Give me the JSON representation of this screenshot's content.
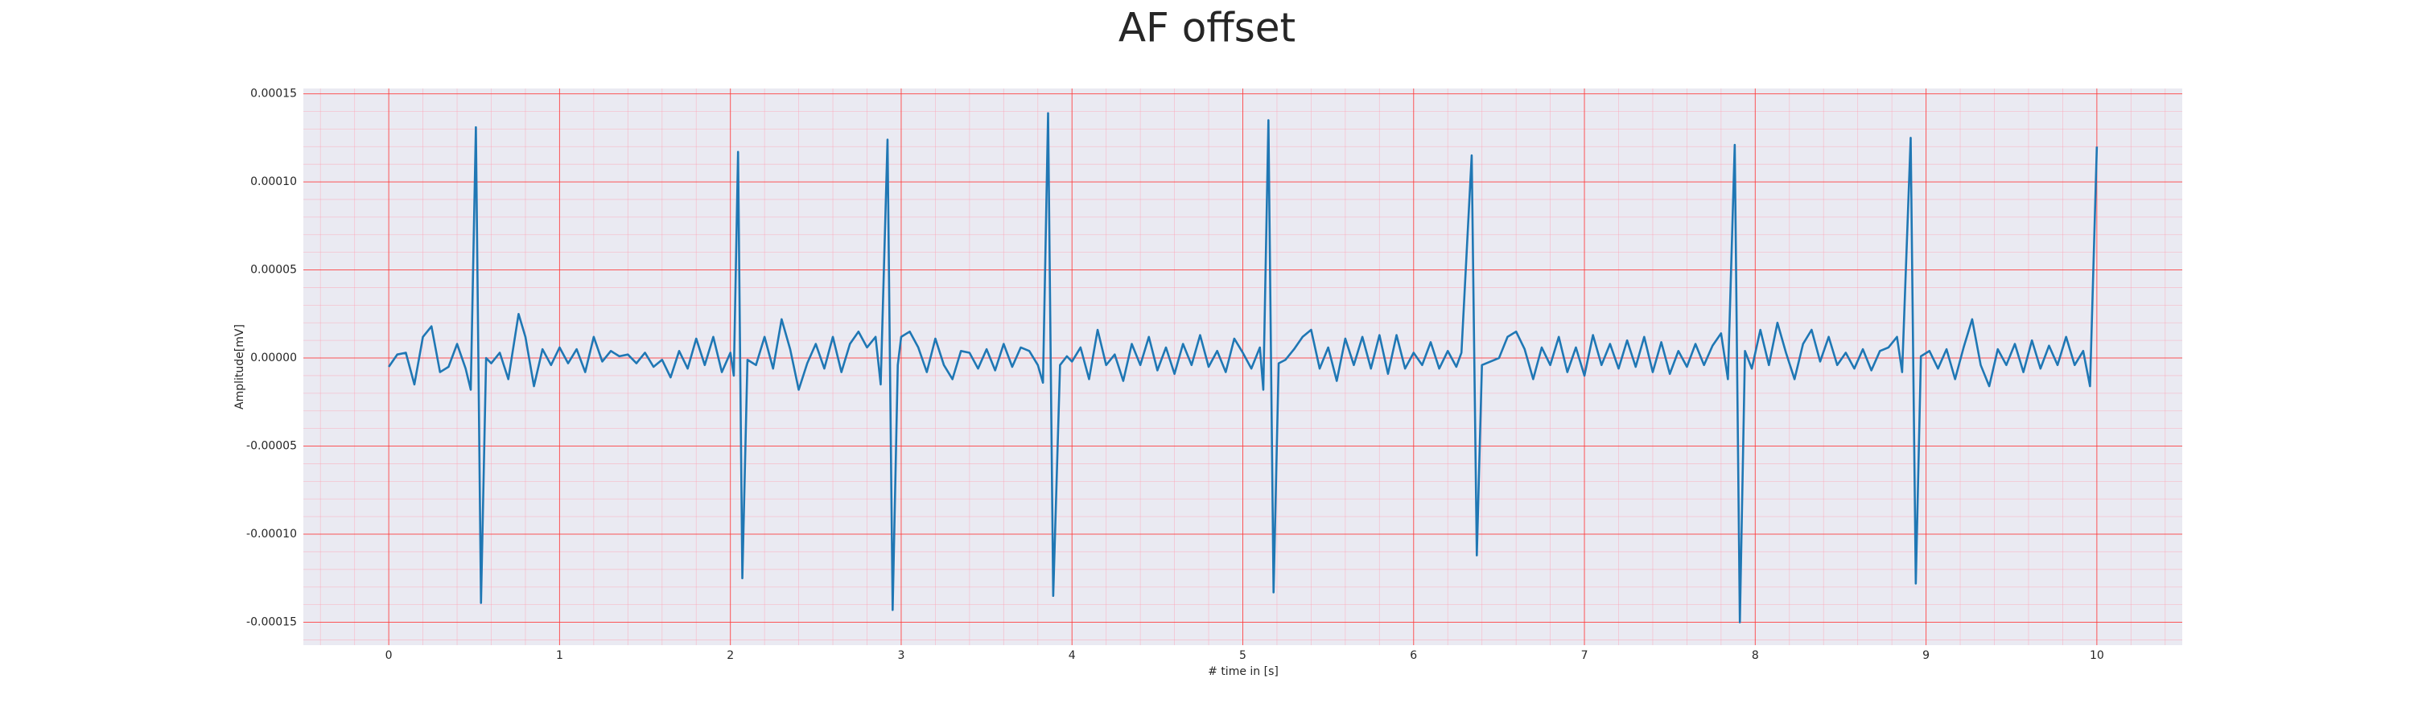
{
  "chart_data": {
    "type": "line",
    "title": "AF offset",
    "xlabel": "# time in [s]",
    "ylabel": "Amplitude[mV]",
    "color": "#1f77b4",
    "grid": true,
    "minor_grid": true,
    "xlim": [
      -0.5,
      10.5
    ],
    "ylim": [
      -0.000163,
      0.000153
    ],
    "xticks": [
      0,
      1,
      2,
      3,
      4,
      5,
      6,
      7,
      8,
      9,
      10
    ],
    "yticks": [
      {
        "value": -0.00015,
        "label": "-0.00015"
      },
      {
        "value": -0.0001,
        "label": "-0.00010"
      },
      {
        "value": -5e-05,
        "label": "-0.00005"
      },
      {
        "value": 0,
        "label": "0.00000"
      },
      {
        "value": 5e-05,
        "label": "0.00005"
      },
      {
        "value": 0.0001,
        "label": "0.00010"
      },
      {
        "value": 0.00015,
        "label": "0.00015"
      }
    ],
    "x": [
      0.0,
      0.05,
      0.1,
      0.15,
      0.2,
      0.25,
      0.3,
      0.35,
      0.4,
      0.45,
      0.48,
      0.51,
      0.54,
      0.57,
      0.6,
      0.65,
      0.7,
      0.76,
      0.8,
      0.85,
      0.9,
      0.95,
      1.0,
      1.05,
      1.1,
      1.15,
      1.2,
      1.25,
      1.3,
      1.35,
      1.4,
      1.45,
      1.5,
      1.55,
      1.6,
      1.65,
      1.7,
      1.75,
      1.8,
      1.85,
      1.9,
      1.95,
      2.0,
      2.02,
      2.045,
      2.07,
      2.1,
      2.15,
      2.2,
      2.25,
      2.3,
      2.35,
      2.4,
      2.45,
      2.5,
      2.55,
      2.6,
      2.65,
      2.7,
      2.75,
      2.8,
      2.85,
      2.88,
      2.92,
      2.95,
      2.98,
      3.0,
      3.05,
      3.1,
      3.15,
      3.2,
      3.25,
      3.3,
      3.35,
      3.4,
      3.45,
      3.5,
      3.55,
      3.6,
      3.65,
      3.7,
      3.75,
      3.8,
      3.83,
      3.86,
      3.89,
      3.93,
      3.97,
      4.0,
      4.05,
      4.1,
      4.15,
      4.2,
      4.25,
      4.3,
      4.35,
      4.4,
      4.45,
      4.5,
      4.55,
      4.6,
      4.65,
      4.7,
      4.75,
      4.8,
      4.85,
      4.9,
      4.95,
      5.0,
      5.05,
      5.1,
      5.12,
      5.15,
      5.18,
      5.21,
      5.25,
      5.3,
      5.35,
      5.4,
      5.45,
      5.5,
      5.55,
      5.6,
      5.65,
      5.7,
      5.75,
      5.8,
      5.85,
      5.9,
      5.95,
      6.0,
      6.05,
      6.1,
      6.15,
      6.2,
      6.25,
      6.28,
      6.34,
      6.37,
      6.4,
      6.45,
      6.5,
      6.55,
      6.6,
      6.65,
      6.7,
      6.75,
      6.8,
      6.85,
      6.9,
      6.95,
      7.0,
      7.05,
      7.1,
      7.15,
      7.2,
      7.25,
      7.3,
      7.35,
      7.4,
      7.45,
      7.5,
      7.55,
      7.6,
      7.65,
      7.7,
      7.75,
      7.8,
      7.84,
      7.88,
      7.91,
      7.94,
      7.98,
      8.03,
      8.08,
      8.13,
      8.18,
      8.23,
      8.28,
      8.33,
      8.38,
      8.43,
      8.48,
      8.53,
      8.58,
      8.63,
      8.68,
      8.73,
      8.78,
      8.83,
      8.86,
      8.91,
      8.94,
      8.97,
      9.02,
      9.07,
      9.12,
      9.17,
      9.22,
      9.27,
      9.32,
      9.37,
      9.42,
      9.47,
      9.52,
      9.57,
      9.62,
      9.67,
      9.72,
      9.77,
      9.82,
      9.87,
      9.92,
      9.96,
      10.0
    ],
    "values": [
      -5e-06,
      2e-06,
      3e-06,
      -1.5e-05,
      1.2e-05,
      1.8e-05,
      -8e-06,
      -5e-06,
      8e-06,
      -6e-06,
      -1.8e-05,
      0.000131,
      -0.000139,
      0.0,
      -3e-06,
      3e-06,
      -1.2e-05,
      2.5e-05,
      1.2e-05,
      -1.6e-05,
      5e-06,
      -4e-06,
      6e-06,
      -3e-06,
      5e-06,
      -8e-06,
      1.2e-05,
      -2e-06,
      4e-06,
      1e-06,
      2e-06,
      -3e-06,
      3e-06,
      -5e-06,
      -1e-06,
      -1.1e-05,
      4e-06,
      -6e-06,
      1.1e-05,
      -4e-06,
      1.2e-05,
      -8e-06,
      3e-06,
      -1e-05,
      0.000117,
      -0.000125,
      -1e-06,
      -4e-06,
      1.2e-05,
      -6e-06,
      2.2e-05,
      5e-06,
      -1.8e-05,
      -3e-06,
      8e-06,
      -6e-06,
      1.2e-05,
      -8e-06,
      8e-06,
      1.5e-05,
      6e-06,
      1.2e-05,
      -1.5e-05,
      0.000124,
      -0.000143,
      -4e-06,
      1.2e-05,
      1.5e-05,
      6e-06,
      -8e-06,
      1.1e-05,
      -4e-06,
      -1.2e-05,
      4e-06,
      3e-06,
      -6e-06,
      5e-06,
      -7e-06,
      8e-06,
      -5e-06,
      6e-06,
      4e-06,
      -4e-06,
      -1.4e-05,
      0.000139,
      -0.000135,
      -4e-06,
      1e-06,
      -2e-06,
      6e-06,
      -1.2e-05,
      1.6e-05,
      -4e-06,
      2e-06,
      -1.3e-05,
      8e-06,
      -4e-06,
      1.2e-05,
      -7e-06,
      6e-06,
      -9e-06,
      8e-06,
      -4e-06,
      1.3e-05,
      -5e-06,
      4e-06,
      -8e-06,
      1.1e-05,
      3e-06,
      -6e-06,
      6e-06,
      -1.8e-05,
      0.000135,
      -0.000133,
      -3e-06,
      -1e-06,
      5e-06,
      1.2e-05,
      1.6e-05,
      -6e-06,
      6e-06,
      -1.3e-05,
      1.1e-05,
      -4e-06,
      1.2e-05,
      -6e-06,
      1.3e-05,
      -9e-06,
      1.3e-05,
      -6e-06,
      3e-06,
      -4e-06,
      9e-06,
      -6e-06,
      4e-06,
      -5e-06,
      3e-06,
      0.000115,
      -0.000112,
      -4e-06,
      -2e-06,
      0.0,
      1.2e-05,
      1.5e-05,
      5e-06,
      -1.2e-05,
      6e-06,
      -4e-06,
      1.2e-05,
      -8e-06,
      6e-06,
      -1e-05,
      1.3e-05,
      -4e-06,
      8e-06,
      -6e-06,
      1e-05,
      -5e-06,
      1.2e-05,
      -8e-06,
      9e-06,
      -9e-06,
      4e-06,
      -5e-06,
      8e-06,
      -4e-06,
      7e-06,
      1.4e-05,
      -1.2e-05,
      0.000121,
      -0.00015,
      4e-06,
      -6e-06,
      1.6e-05,
      -4e-06,
      2e-05,
      3e-06,
      -1.2e-05,
      8e-06,
      1.6e-05,
      -2e-06,
      1.2e-05,
      -4e-06,
      3e-06,
      -6e-06,
      5e-06,
      -7e-06,
      4e-06,
      6e-06,
      1.2e-05,
      -8e-06,
      0.000125,
      -0.000128,
      1e-06,
      4e-06,
      -6e-06,
      5e-06,
      -1.2e-05,
      6e-06,
      2.2e-05,
      -4e-06,
      -1.6e-05,
      5e-06,
      -4e-06,
      8e-06,
      -8e-06,
      1e-05,
      -6e-06,
      7e-06,
      -4e-06,
      1.2e-05,
      -4e-06,
      4e-06,
      -1.6e-05,
      0.00012
    ]
  }
}
